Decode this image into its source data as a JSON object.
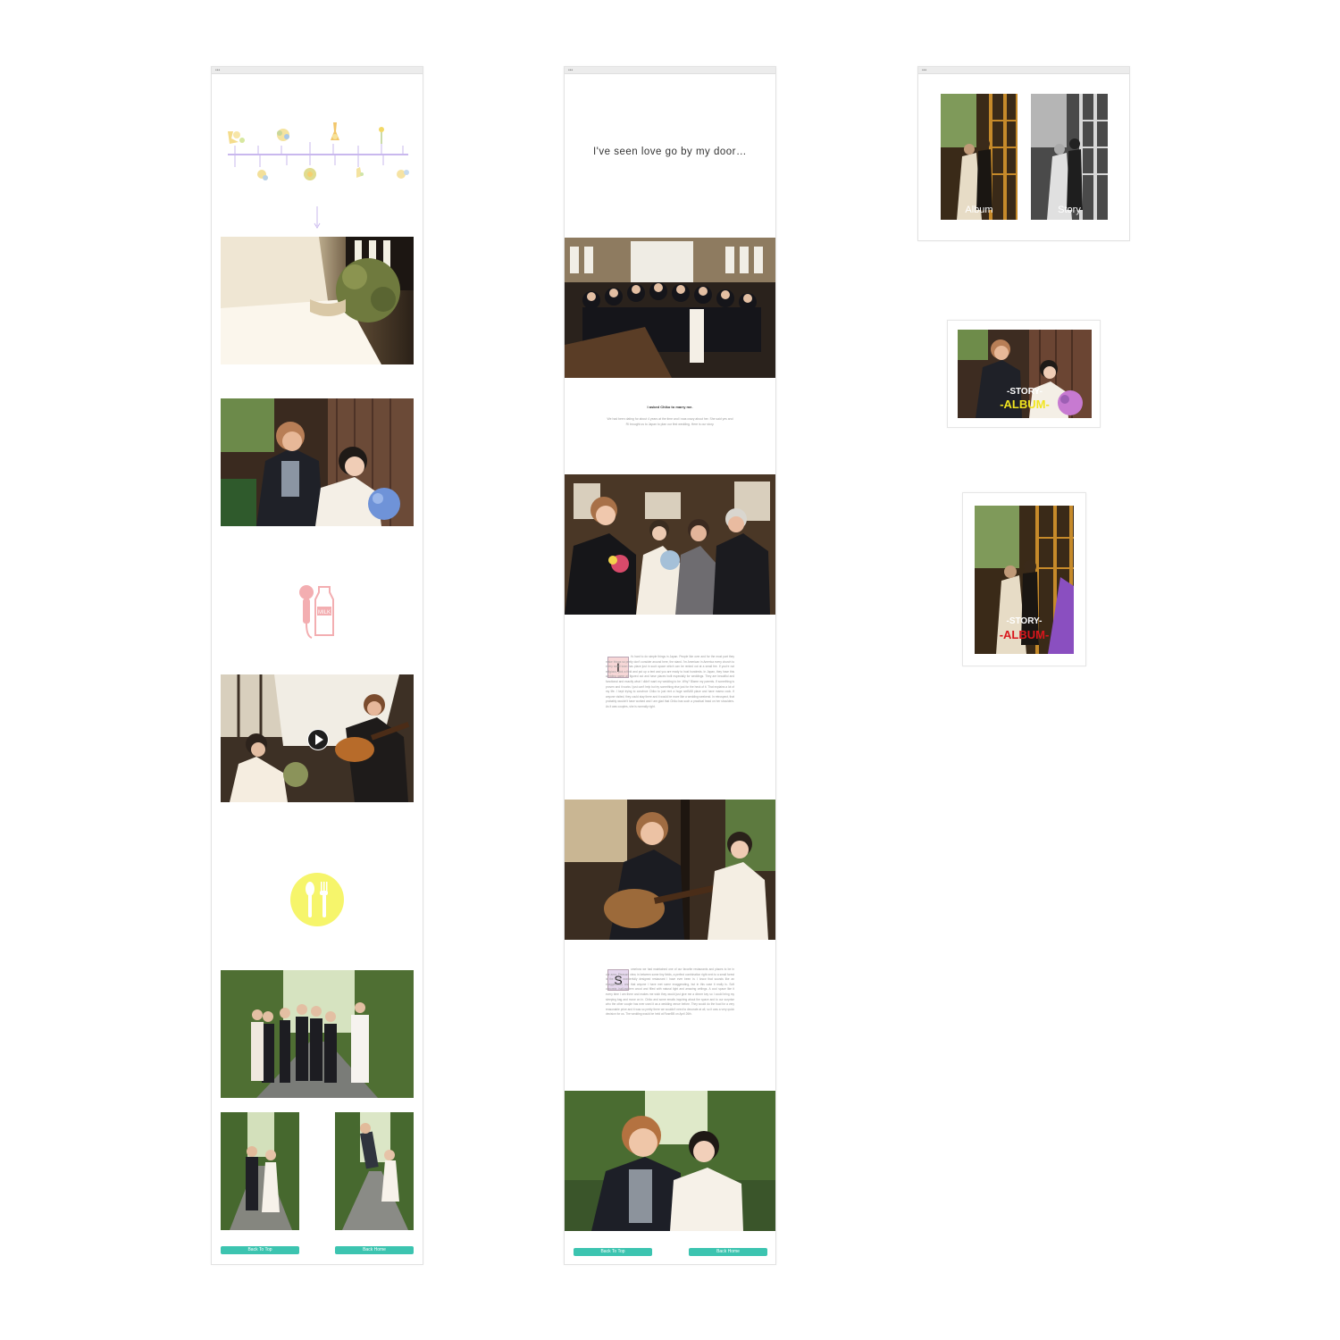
{
  "colors": {
    "teal_button": "#3cc4b0",
    "pink_icon": "#f3aeb1",
    "yellow_icon": "#f6f56b",
    "album_yellow": "#f2e51f",
    "album_red": "#d8161c",
    "timeline_purple": "#c9b8ee"
  },
  "window_left": {
    "titlebar_dots": "•••",
    "timeline_icons": [
      "dress-ribbon-icon",
      "bouquet-icon",
      "champagne-icon",
      "flower-icon",
      "ring-box-icon",
      "cake-icon",
      "bouquet-round-icon",
      "bow-icon"
    ],
    "arrow_icon": "down-arrow-icon",
    "mic_milk_icon": "microphone-milk-icon",
    "cutlery_icon": "fork-spoon-icon",
    "video_play_icon": "play-icon",
    "buttons": {
      "back_to_top": "Back To Top",
      "back_home": "Back Home"
    }
  },
  "window_middle": {
    "titlebar_dots": "•••",
    "headline": "I've seen love go by my door…",
    "story_heading": "I asked Chiko to marry me.",
    "story_intro": "We had been dating for about 4 years at the time and I was crazy about her. She said yes and RI brought us to Japan to plan our first wedding. Here is our story.",
    "dropcap_1": "I",
    "paragraph_1": "t's hard to do simple things in Japan. People like over and for the most part they make things so pretty don't consider around here, the stand. I'm American in America every church to every small town has place just in such space which can be rented out at a small fee. If you're not religious, pick a field and put up a tent and you are ready to host hundreds. In Japan, they have this wedding game all figured out and have places built especially for weddings. They are beautiful and functional and exactly what I didn't want my wedding to be. Why? Blame my parents. If something is proven and it works I just can't help but try something else just for the heck of it. That explains a lot of my life. I kept trying to convince Chiko to just rent a huge smBAB place and have mama cook. If anyone visited, they could stay there and it would be more like a wedding weekend. In retrospect, that probably wouldn't have worked and I am glad that Chiko has such a practical head on her shoulders. As it was couples, she is normally right.",
    "dropcap_2": "S",
    "paragraph_2": "omehow we had maintained one of our favorite restaurants and places to be in our area. Pleasant view, in between some tiny fields, a perfect combination right next to a small forest is the most wonderfully designed restaurant I have ever been in. I know that sounds like an exaggeration, and that anyone I have met some exaggerating, but in this case it really is. Soft concrete, half-modern wood and filled with natural light and amazing ceilings. A cool space like it every time I am there and makes me wish they would just give me a dinner key so I could bring my sleeping bag and move on in. Chiko and some emails inquiring about the space and to our surprise who the other couple has ever used it as a wedding venue before. They would do the food for a very reasonable price and it was so pretty there we wouldn't need to decorate at all, so it was a very quick decision for us. The wedding would be held at RoseBB on April 26th.",
    "buttons": {
      "back_to_top": "Back To Top",
      "back_home": "Back Home"
    }
  },
  "window_right": {
    "titlebar_dots": "•••",
    "album_label": "Album",
    "story_label": "Story"
  },
  "card_landscape": {
    "story_label": "-STORY-",
    "album_label": "-ALBUM-"
  },
  "card_portrait": {
    "story_label": "-STORY-",
    "album_label": "-ALBUM-"
  }
}
